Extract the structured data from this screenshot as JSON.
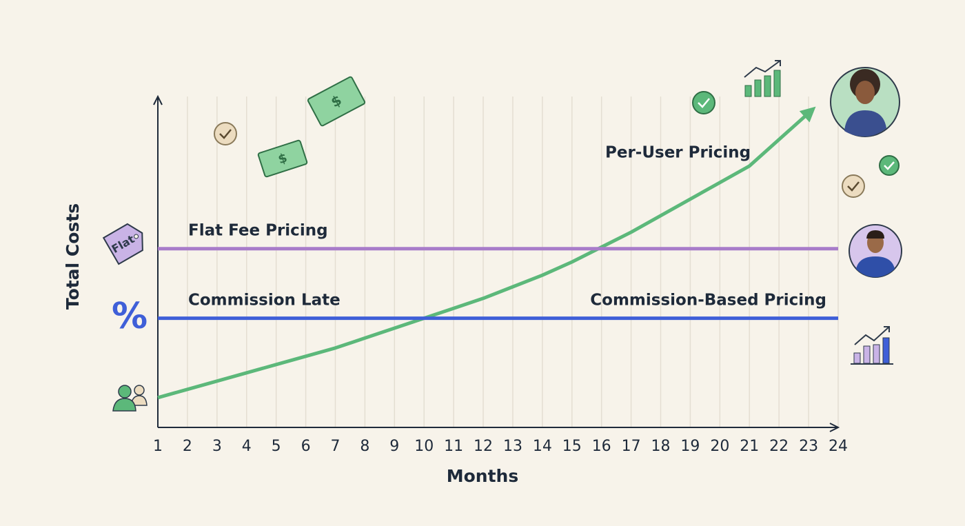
{
  "chart_data": {
    "type": "line",
    "x_label": "Months",
    "y_label": "Total Costs",
    "x": [
      1,
      2,
      3,
      4,
      5,
      6,
      7,
      8,
      9,
      10,
      11,
      12,
      13,
      14,
      15,
      16,
      17,
      18,
      19,
      20,
      21,
      22,
      23,
      24
    ],
    "xlim": [
      1,
      24
    ],
    "xticks": [
      1,
      2,
      3,
      4,
      5,
      6,
      7,
      8,
      9,
      10,
      11,
      12,
      13,
      14,
      15,
      16,
      17,
      18,
      19,
      20,
      21,
      22,
      23,
      24
    ],
    "ylim": [
      0,
      100
    ],
    "grid": "x",
    "series": [
      {
        "name": "Per-User Pricing",
        "color": "#5cb87a",
        "values": [
          9,
          11.5,
          14,
          16.5,
          19,
          21.5,
          24,
          27,
          30,
          33,
          36,
          39,
          42.5,
          46,
          50,
          54.5,
          59,
          64,
          69,
          74,
          79,
          87,
          95,
          null
        ]
      },
      {
        "name": "Flat Fee Pricing",
        "color": "#a87cc9",
        "values": [
          54,
          54,
          54,
          54,
          54,
          54,
          54,
          54,
          54,
          54,
          54,
          54,
          54,
          54,
          54,
          54,
          54,
          54,
          54,
          54,
          54,
          54,
          54,
          54
        ]
      },
      {
        "name": "Commission-Based Pricing",
        "color": "#3f5fd8",
        "values": [
          33,
          33,
          33,
          33,
          33,
          33,
          33,
          33,
          33,
          33,
          33,
          33,
          33,
          33,
          33,
          33,
          33,
          33,
          33,
          33,
          33,
          33,
          33,
          33
        ]
      }
    ],
    "annotations": [
      "Commission Late"
    ],
    "icons": {
      "tag": "Flat",
      "percent": "%",
      "bill": "$"
    }
  }
}
